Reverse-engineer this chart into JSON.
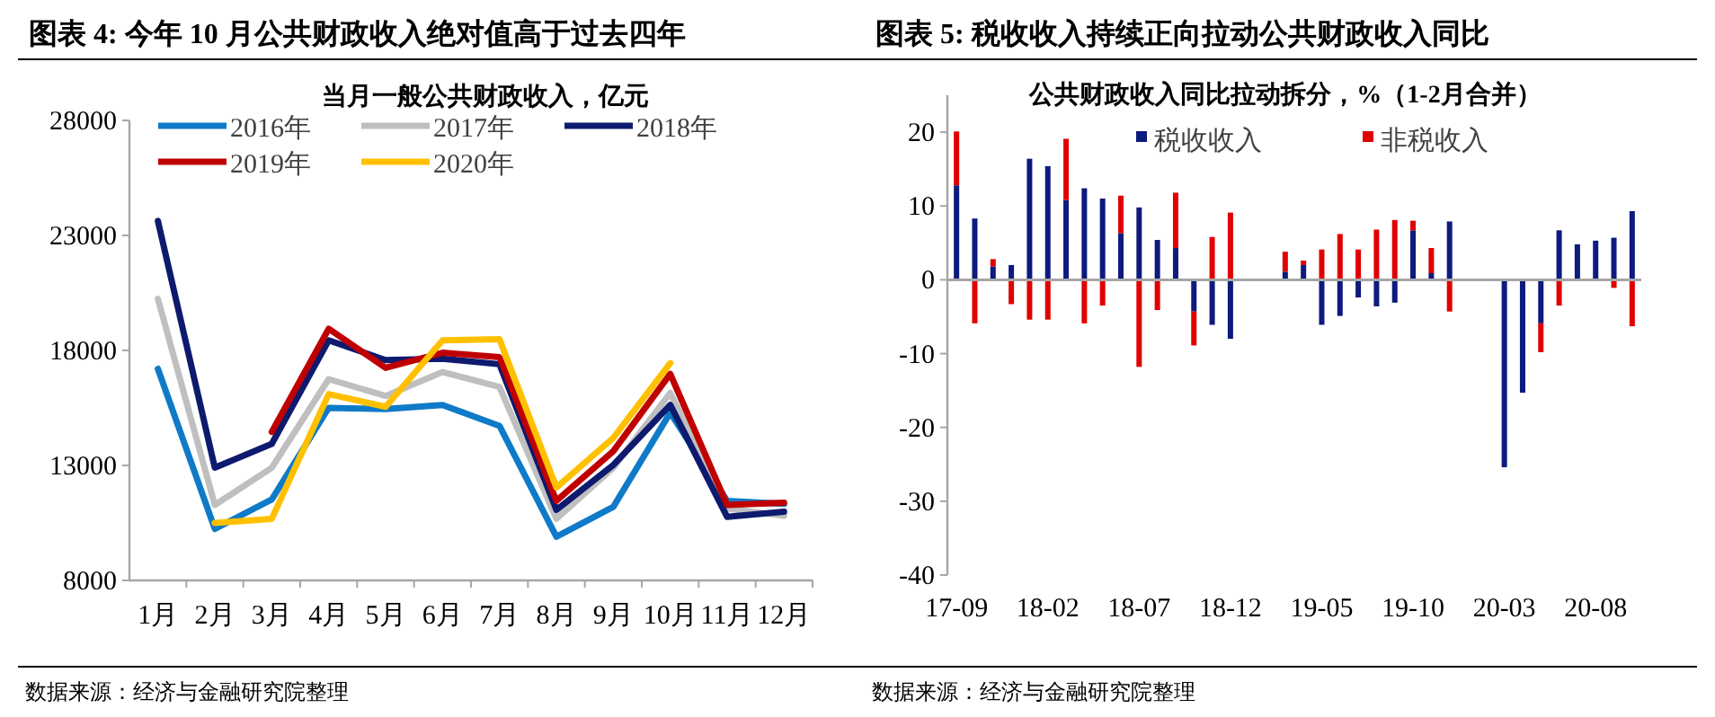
{
  "chart_data": [
    {
      "type": "line",
      "title": "图表 4: 今年 10 月公共财政收入绝对值高于过去四年",
      "subtitle": "当月一般公共财政收入，亿元",
      "categories": [
        "1月",
        "2月",
        "3月",
        "4月",
        "5月",
        "6月",
        "7月",
        "8月",
        "9月",
        "10月",
        "11月",
        "12月"
      ],
      "series": [
        {
          "name": "2016年",
          "color": "#0f7ac8",
          "values": [
            17200,
            10240,
            11520,
            15500,
            15450,
            15630,
            14720,
            9900,
            11200,
            15290,
            11460,
            11330
          ]
        },
        {
          "name": "2017年",
          "color": "#bfbfbf",
          "values": [
            20240,
            11280,
            12900,
            16750,
            16020,
            17060,
            16410,
            10680,
            12900,
            16150,
            11120,
            10810
          ]
        },
        {
          "name": "2018年",
          "color": "#0d1a6e",
          "values": [
            23630,
            12900,
            13940,
            18440,
            17580,
            17640,
            17400,
            11070,
            13020,
            15630,
            10760,
            10990
          ]
        },
        {
          "name": "2019年",
          "color": "#c00000",
          "values": [
            null,
            null,
            14460,
            18940,
            17240,
            17900,
            17710,
            11460,
            13620,
            16980,
            11280,
            11380
          ]
        },
        {
          "name": "2020年",
          "color": "#ffc000",
          "values": [
            null,
            10500,
            10680,
            16100,
            15550,
            18440,
            18490,
            12040,
            14200,
            17450,
            null,
            null
          ]
        }
      ],
      "ylim": [
        8000,
        28000
      ],
      "yticks": [
        8000,
        13000,
        18000,
        23000,
        28000
      ],
      "legend": "top",
      "annotations": [
        "数据来源：经济与金融研究院整理"
      ]
    },
    {
      "type": "bar",
      "stacked": true,
      "title": "图表 5: 税收收入持续正向拉动公共财政收入同比",
      "subtitle": "公共财政收入同比拉动拆分，%（1-2月合并）",
      "categories": [
        "17-09",
        null,
        null,
        null,
        null,
        "18-02",
        null,
        null,
        null,
        null,
        "18-07",
        null,
        null,
        null,
        null,
        "18-12",
        null,
        null,
        null,
        null,
        "19-05",
        null,
        null,
        null,
        null,
        "19-10",
        null,
        null,
        null,
        null,
        "20-03",
        null,
        null,
        null,
        null,
        "20-08",
        null,
        null
      ],
      "series": [
        {
          "name": "税收收入",
          "color": "#0d1a7e",
          "values": [
            12.8,
            8.3,
            1.8,
            2.0,
            16.4,
            15.4,
            10.8,
            12.4,
            11.0,
            6.3,
            9.8,
            5.4,
            4.3,
            -4.3,
            -6.1,
            -8.0,
            null,
            null,
            1.1,
            2.0,
            -6.1,
            -4.9,
            -2.4,
            -3.6,
            -3.1,
            6.7,
            0.9,
            7.9,
            null,
            null,
            -25.4,
            -15.3,
            -5.9,
            6.7,
            4.8,
            5.3,
            5.7,
            9.3
          ]
        },
        {
          "name": "非税收入",
          "color": "#e00000",
          "values": [
            7.3,
            -5.9,
            1.0,
            -3.3,
            -5.4,
            -5.4,
            8.3,
            -5.9,
            -3.5,
            5.1,
            -11.8,
            -4.1,
            7.5,
            -4.6,
            5.8,
            9.1,
            null,
            null,
            2.7,
            0.6,
            4.1,
            6.2,
            4.1,
            6.8,
            8.1,
            1.3,
            3.4,
            -4.3,
            null,
            null,
            0,
            null,
            -3.9,
            -3.5,
            null,
            0,
            -1.1,
            -6.3
          ]
        }
      ],
      "ylim": [
        -40,
        25
      ],
      "yticks": [
        -40,
        -30,
        -20,
        -10,
        0,
        10,
        20
      ],
      "legend": "top",
      "annotations": [
        "数据来源：经济与金融研究院整理"
      ]
    }
  ]
}
